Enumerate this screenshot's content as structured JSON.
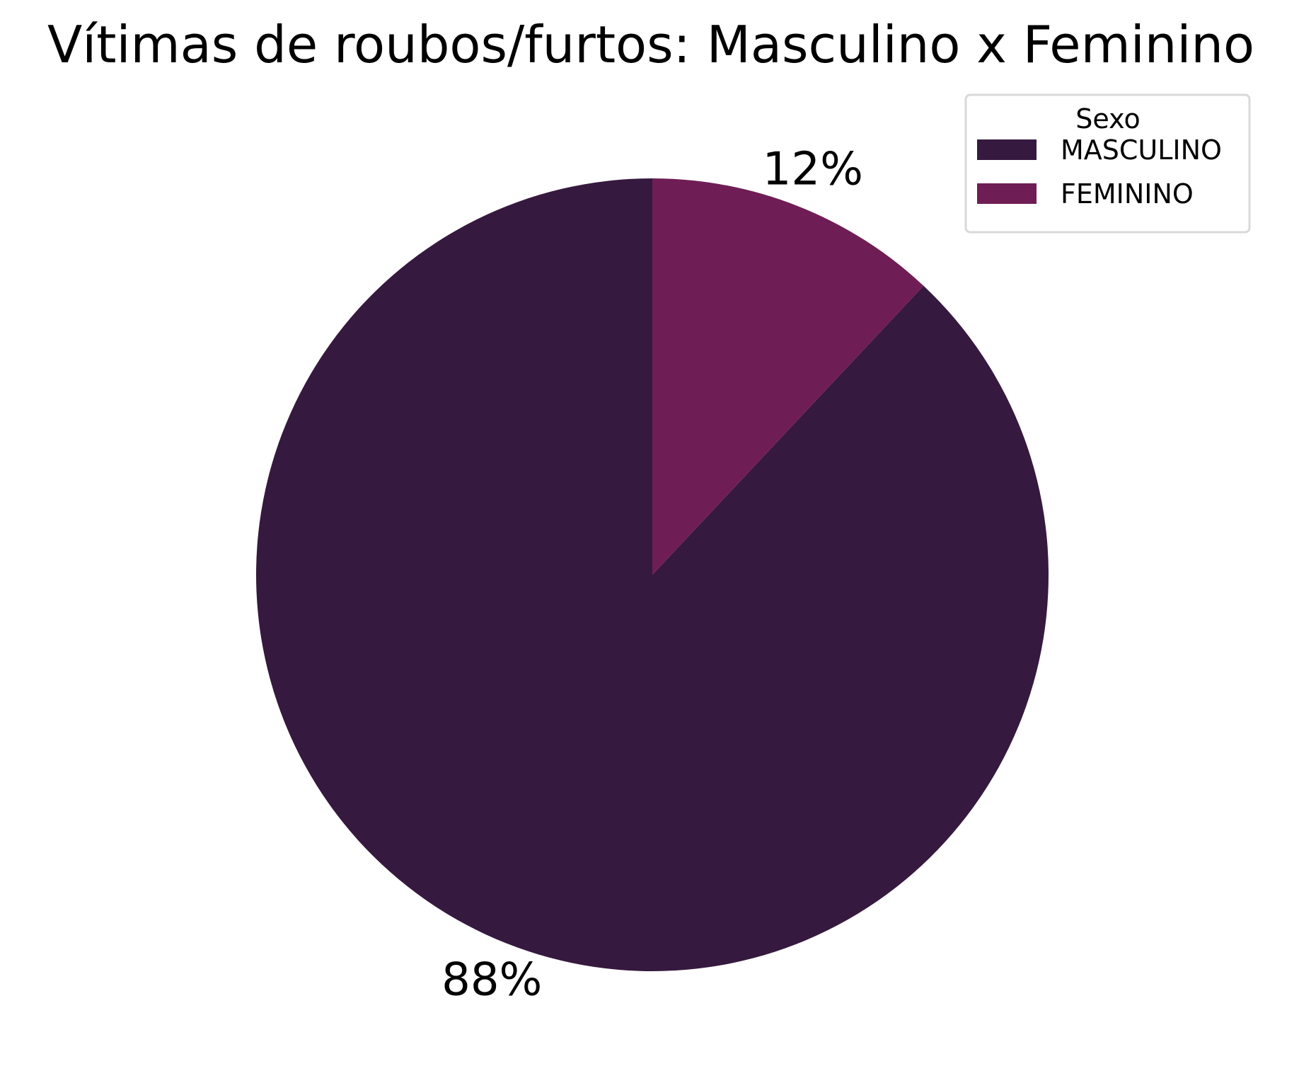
{
  "chart_data": {
    "type": "pie",
    "title": "Vítimas de roubos/furtos: Masculino x Feminino",
    "categories": [
      "MASCULINO",
      "FEMININO"
    ],
    "values": [
      88,
      12
    ],
    "value_labels": [
      "88%",
      "12%"
    ],
    "colors": [
      "#36193e",
      "#6f1d55"
    ],
    "start_angle_deg": 90,
    "direction": "counterclockwise",
    "legend": {
      "title": "Sexo",
      "placement": "upper-right"
    }
  }
}
